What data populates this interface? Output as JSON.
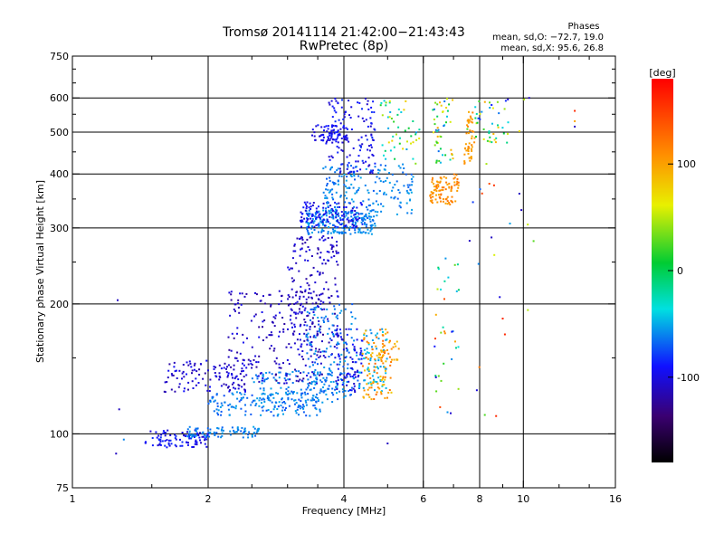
{
  "chart_data": {
    "type": "scatter",
    "title": "Tromsø 20141114 21:42:00−21:43:43",
    "subtitle": "RwPretec (8p)",
    "phases_block": {
      "heading": "Phases",
      "line1": "mean, sd,O: −72.7, 19.0",
      "line2": "mean, sd,X:  95.6, 26.8"
    },
    "xlabel": "Frequency [MHz]",
    "ylabel": "Stationary phase Virtual Height [km]",
    "x_scale": "log",
    "y_scale": "log",
    "xlim": [
      1,
      16
    ],
    "ylim": [
      75,
      750
    ],
    "x_ticks": [
      1,
      2,
      4,
      6,
      8,
      10,
      16
    ],
    "x_ticks_major": [
      2,
      4,
      6,
      8,
      10
    ],
    "x_minor_ticks": [
      1.5,
      2.5,
      3,
      3.5,
      5,
      7,
      9,
      12,
      14
    ],
    "y_ticks": [
      75,
      100,
      200,
      300,
      400,
      500,
      600,
      750
    ],
    "y_ticks_major": [
      100,
      200,
      300,
      400,
      500,
      600
    ],
    "y_minor_ticks": [
      150,
      250,
      350,
      450,
      550,
      650,
      700
    ],
    "grid": true,
    "colorbar": {
      "label": "[deg]",
      "min": -180,
      "max": 180,
      "ticks": [
        100,
        0,
        -100
      ]
    },
    "point_groups": [
      {
        "x_range": [
          1.45,
          2.0
        ],
        "y_range": [
          93,
          102
        ],
        "phase": [
          -110,
          -80
        ],
        "n": 90
      },
      {
        "x_range": [
          1.8,
          2.6
        ],
        "y_range": [
          98,
          104
        ],
        "phase": [
          -70,
          -50
        ],
        "n": 80
      },
      {
        "x_range": [
          1.6,
          2.5
        ],
        "y_range": [
          125,
          148
        ],
        "phase": [
          -120,
          -90
        ],
        "n": 110
      },
      {
        "x_range": [
          2.0,
          3.6
        ],
        "y_range": [
          110,
          125
        ],
        "phase": [
          -75,
          -50
        ],
        "n": 150
      },
      {
        "x_range": [
          2.5,
          4.0
        ],
        "y_range": [
          118,
          140
        ],
        "phase": [
          -70,
          -50
        ],
        "n": 130
      },
      {
        "x_range": [
          2.2,
          3.6
        ],
        "y_range": [
          130,
          215
        ],
        "phase": [
          -125,
          -95
        ],
        "n": 220
      },
      {
        "x_range": [
          3.0,
          3.9
        ],
        "y_range": [
          150,
          290
        ],
        "phase": [
          -120,
          -95
        ],
        "n": 180
      },
      {
        "x_range": [
          3.3,
          4.3
        ],
        "y_range": [
          120,
          200
        ],
        "phase": [
          -75,
          -50
        ],
        "n": 150
      },
      {
        "x_range": [
          3.8,
          4.4
        ],
        "y_range": [
          125,
          175
        ],
        "phase": [
          -110,
          -85
        ],
        "n": 80
      },
      {
        "x_range": [
          4.3,
          5.0
        ],
        "y_range": [
          125,
          175
        ],
        "phase": [
          -60,
          -40
        ],
        "n": 70
      },
      {
        "x_range": [
          4.4,
          5.1
        ],
        "y_range": [
          120,
          175
        ],
        "phase": [
          80,
          130
        ],
        "n": 90
      },
      {
        "x_range": [
          4.7,
          5.3
        ],
        "y_range": [
          148,
          165
        ],
        "phase": [
          85,
          110
        ],
        "n": 25
      },
      {
        "x_range": [
          3.3,
          4.7
        ],
        "y_range": [
          290,
          330
        ],
        "phase": [
          -70,
          -50
        ],
        "n": 200
      },
      {
        "x_range": [
          3.2,
          4.4
        ],
        "y_range": [
          300,
          345
        ],
        "phase": [
          -110,
          -85
        ],
        "n": 120
      },
      {
        "x_range": [
          3.6,
          5.7
        ],
        "y_range": [
          320,
          420
        ],
        "phase": [
          -70,
          -50
        ],
        "n": 180
      },
      {
        "x_range": [
          3.4,
          4.1
        ],
        "y_range": [
          470,
          520
        ],
        "phase": [
          -110,
          -85
        ],
        "n": 70
      },
      {
        "x_range": [
          3.7,
          4.7
        ],
        "y_range": [
          400,
          600
        ],
        "phase": [
          -110,
          -80
        ],
        "n": 130
      },
      {
        "x_range": [
          4.8,
          5.9
        ],
        "y_range": [
          420,
          600
        ],
        "phase": [
          -60,
          80
        ],
        "n": 50
      },
      {
        "x_range": [
          6.2,
          7.2
        ],
        "y_range": [
          340,
          400
        ],
        "phase": [
          95,
          125
        ],
        "n": 90
      },
      {
        "x_range": [
          6.3,
          7.0
        ],
        "y_range": [
          420,
          600
        ],
        "phase": [
          -70,
          110
        ],
        "n": 50
      },
      {
        "x_range": [
          7.4,
          7.8
        ],
        "y_range": [
          420,
          560
        ],
        "phase": [
          95,
          115
        ],
        "n": 50
      },
      {
        "x_range": [
          7.8,
          9.3
        ],
        "y_range": [
          470,
          600
        ],
        "phase": [
          -110,
          100
        ],
        "n": 40
      },
      {
        "x_range": [
          6.3,
          7.2
        ],
        "y_range": [
          110,
          260
        ],
        "phase": [
          -110,
          150
        ],
        "n": 35
      },
      {
        "x_range": [
          7.5,
          11.0
        ],
        "y_range": [
          110,
          650
        ],
        "phase": [
          -120,
          170
        ],
        "n": 20
      }
    ],
    "scattered_points": [
      {
        "x": 1.26,
        "y": 204,
        "phase": -110
      },
      {
        "x": 1.27,
        "y": 114,
        "phase": -110
      },
      {
        "x": 1.25,
        "y": 90,
        "phase": -110
      },
      {
        "x": 1.3,
        "y": 97,
        "phase": -60
      },
      {
        "x": 8.7,
        "y": 110,
        "phase": 160
      },
      {
        "x": 9.0,
        "y": 185,
        "phase": 160
      },
      {
        "x": 9.1,
        "y": 170,
        "phase": 160
      },
      {
        "x": 9.8,
        "y": 360,
        "phase": -110
      },
      {
        "x": 9.9,
        "y": 330,
        "phase": -110
      },
      {
        "x": 10.3,
        "y": 600,
        "phase": -110
      },
      {
        "x": 13.0,
        "y": 560,
        "phase": 160
      },
      {
        "x": 13.0,
        "y": 530,
        "phase": 100
      },
      {
        "x": 13.0,
        "y": 515,
        "phase": -110
      },
      {
        "x": 5.0,
        "y": 95,
        "phase": -110
      },
      {
        "x": 7.6,
        "y": 280,
        "phase": -110
      },
      {
        "x": 8.5,
        "y": 285,
        "phase": -110
      }
    ]
  }
}
